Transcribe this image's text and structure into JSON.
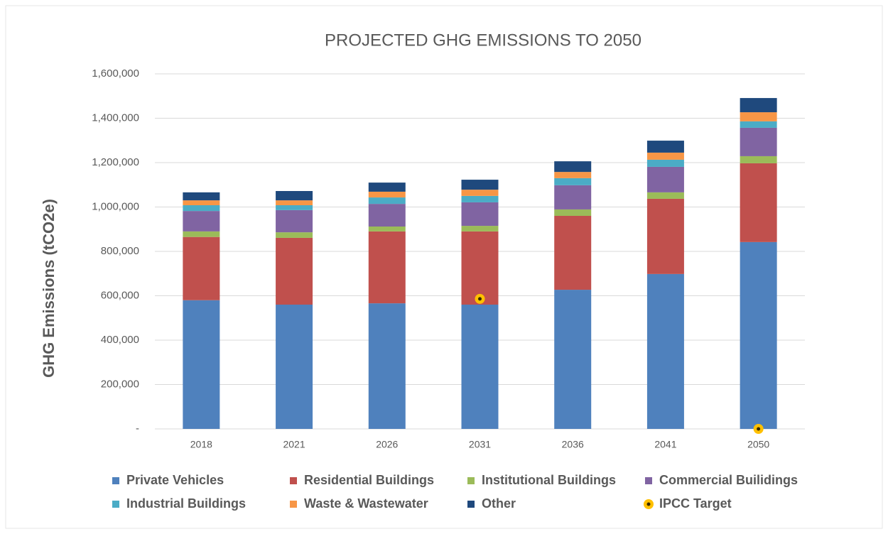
{
  "chart_data": {
    "type": "bar",
    "stacked": true,
    "title": "PROJECTED GHG EMISSIONS TO 2050",
    "y_label": "GHG Emissions (tCO2e)",
    "categories": [
      "2018",
      "2021",
      "2026",
      "2031",
      "2036",
      "2041",
      "2050"
    ],
    "series": [
      {
        "name": "Private Vehicles",
        "color": "#4f81bd",
        "values": [
          580000,
          560000,
          566000,
          560000,
          627000,
          698000,
          842000
        ]
      },
      {
        "name": "Residential Buildings",
        "color": "#c0504d",
        "values": [
          285000,
          301000,
          324000,
          330000,
          333000,
          339000,
          355000
        ]
      },
      {
        "name": "Institutional Buildings",
        "color": "#9bbb59",
        "values": [
          25000,
          25000,
          22000,
          25000,
          29000,
          29000,
          32000
        ]
      },
      {
        "name": "Commercial Builidings",
        "color": "#8064a2",
        "values": [
          92000,
          100000,
          102000,
          106000,
          109000,
          115000,
          128000
        ]
      },
      {
        "name": "Industrial Buildings",
        "color": "#4bacc6",
        "values": [
          26000,
          22000,
          29000,
          29000,
          32000,
          32000,
          29000
        ]
      },
      {
        "name": "Waste & Wastewater",
        "color": "#f79646",
        "values": [
          22000,
          22000,
          26000,
          28000,
          28000,
          32000,
          41000
        ]
      },
      {
        "name": "Other",
        "color": "#1f497d",
        "values": [
          36000,
          42000,
          41000,
          45000,
          48000,
          54000,
          64000
        ]
      },
      {
        "name": "IPCC Target",
        "color": "#ffc000",
        "type": "scatter",
        "values": [
          null,
          null,
          null,
          586000,
          null,
          null,
          0
        ]
      }
    ],
    "ylim": [
      0,
      1600000
    ],
    "yticks": [
      {
        "value": 0,
        "label": "-"
      },
      {
        "value": 200000,
        "label": "200,000"
      },
      {
        "value": 400000,
        "label": "400,000"
      },
      {
        "value": 600000,
        "label": "600,000"
      },
      {
        "value": 800000,
        "label": "800,000"
      },
      {
        "value": 1000000,
        "label": "1,000,000"
      },
      {
        "value": 1200000,
        "label": "1,200,000"
      },
      {
        "value": 1400000,
        "label": "1,400,000"
      },
      {
        "value": 1600000,
        "label": "1,600,000"
      }
    ],
    "grid": true,
    "legend": "bottom"
  }
}
